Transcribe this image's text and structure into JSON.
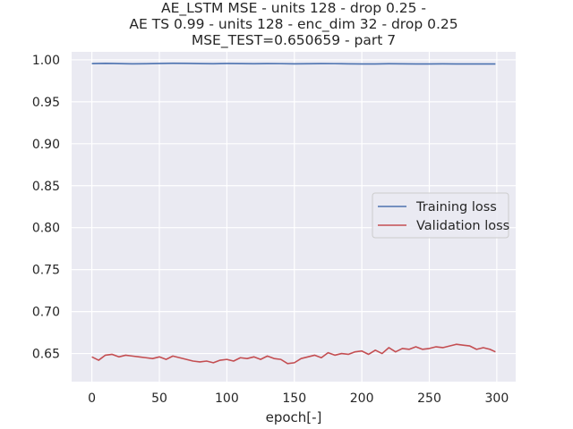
{
  "chart_data": {
    "type": "line",
    "title_lines": [
      "AE_LSTM MSE - units 128 - drop 0.25 -",
      "AE TS 0.99 - units 128 - enc_dim 32 - drop 0.25",
      "MSE_TEST=0.650659 - part 7"
    ],
    "xlabel": "epoch[-]",
    "ylabel": "",
    "xlim": [
      -15,
      314
    ],
    "ylim": [
      0.6165,
      1.0095
    ],
    "x_ticks": [
      0,
      50,
      100,
      150,
      200,
      250,
      300
    ],
    "x_tick_labels": [
      "0",
      "50",
      "100",
      "150",
      "200",
      "250",
      "300"
    ],
    "y_ticks": [
      1.0,
      0.95,
      0.9,
      0.85,
      0.8,
      0.75,
      0.7,
      0.65
    ],
    "y_tick_labels": [
      "1.00",
      "0.95",
      "0.90",
      "0.85",
      "0.80",
      "0.75",
      "0.70",
      "0.65"
    ],
    "grid": true,
    "legend_position": "center-right",
    "background_color": "#eaeaf2",
    "grid_color": "#ffffff",
    "series": [
      {
        "name": "Training loss",
        "color": "#4c72b0",
        "x": [
          0,
          10,
          20,
          30,
          40,
          50,
          60,
          70,
          80,
          90,
          100,
          110,
          120,
          130,
          140,
          150,
          160,
          170,
          180,
          190,
          200,
          210,
          220,
          230,
          240,
          250,
          260,
          270,
          280,
          290,
          299
        ],
        "y": [
          0.9955,
          0.9957,
          0.9955,
          0.9952,
          0.9953,
          0.9956,
          0.9958,
          0.9957,
          0.9955,
          0.9953,
          0.9956,
          0.9955,
          0.9953,
          0.9955,
          0.9954,
          0.9952,
          0.9953,
          0.9955,
          0.9954,
          0.9952,
          0.995,
          0.9951,
          0.9953,
          0.9952,
          0.995,
          0.9951,
          0.9952,
          0.995,
          0.9951,
          0.995,
          0.9951
        ]
      },
      {
        "name": "Validation loss",
        "color": "#c44e52",
        "x": [
          0,
          5,
          10,
          15,
          20,
          25,
          30,
          35,
          40,
          45,
          50,
          55,
          60,
          65,
          70,
          75,
          80,
          85,
          90,
          95,
          100,
          105,
          110,
          115,
          120,
          125,
          130,
          135,
          140,
          145,
          150,
          155,
          160,
          165,
          170,
          175,
          180,
          185,
          190,
          195,
          200,
          205,
          210,
          215,
          220,
          225,
          230,
          235,
          240,
          245,
          250,
          255,
          260,
          265,
          270,
          275,
          280,
          285,
          290,
          295,
          299
        ],
        "y": [
          0.646,
          0.642,
          0.648,
          0.649,
          0.646,
          0.648,
          0.647,
          0.646,
          0.645,
          0.644,
          0.646,
          0.643,
          0.647,
          0.645,
          0.643,
          0.641,
          0.64,
          0.641,
          0.639,
          0.642,
          0.643,
          0.641,
          0.645,
          0.644,
          0.646,
          0.643,
          0.647,
          0.644,
          0.643,
          0.638,
          0.639,
          0.644,
          0.646,
          0.648,
          0.645,
          0.651,
          0.648,
          0.65,
          0.649,
          0.652,
          0.653,
          0.649,
          0.654,
          0.65,
          0.657,
          0.652,
          0.656,
          0.655,
          0.658,
          0.655,
          0.656,
          0.658,
          0.657,
          0.659,
          0.661,
          0.66,
          0.659,
          0.655,
          0.657,
          0.655,
          0.652
        ]
      }
    ]
  }
}
